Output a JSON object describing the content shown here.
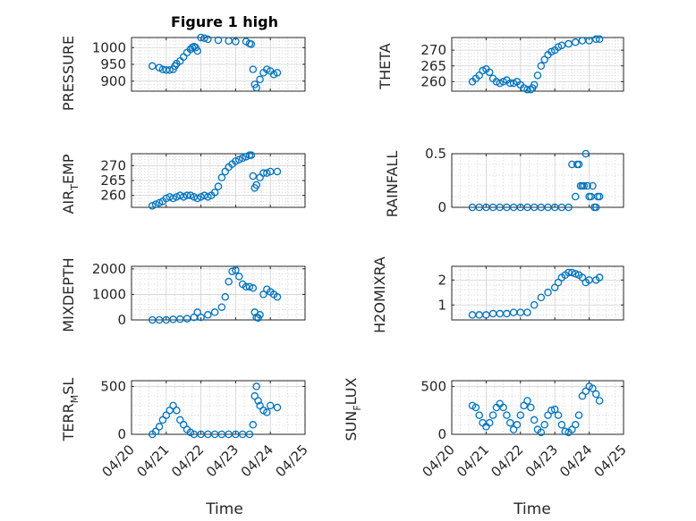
{
  "figure": {
    "title": "Figure 1 high",
    "marker_color": "#0072BD",
    "marker": "circle-open"
  },
  "chart_data": [
    {
      "type": "scatter",
      "title": "Figure 1 high",
      "ylabel": "PRESSURE",
      "xlabel": "",
      "xlim": [
        "04/20",
        "04/25"
      ],
      "xticks": [],
      "ylim": [
        870,
        1030
      ],
      "yticks": [
        900,
        950,
        1000
      ],
      "yticklabels": [
        "900",
        "950",
        "1000"
      ],
      "x_days": [
        0.6,
        0.8,
        0.9,
        1.0,
        1.1,
        1.2,
        1.25,
        1.3,
        1.4,
        1.5,
        1.6,
        1.7,
        1.75,
        1.8,
        1.85,
        1.9,
        2.0,
        2.1,
        2.2,
        2.5,
        2.8,
        3.0,
        3.3,
        3.4,
        3.45,
        3.5,
        3.55,
        3.6,
        3.7,
        3.8,
        3.9,
        4.0,
        4.1,
        4.2
      ],
      "y": [
        945,
        940,
        935,
        933,
        933,
        935,
        945,
        952,
        960,
        972,
        985,
        995,
        1000,
        1003,
        1000,
        990,
        1030,
        1028,
        1025,
        1022,
        1020,
        1018,
        1018,
        1012,
        1010,
        935,
        890,
        880,
        905,
        925,
        935,
        930,
        920,
        925
      ]
    },
    {
      "type": "scatter",
      "ylabel": "THETA",
      "xlabel": "",
      "xlim": [
        "04/20",
        "04/25"
      ],
      "xticks": [],
      "ylim": [
        257,
        274
      ],
      "yticks": [
        260,
        265,
        270
      ],
      "yticklabels": [
        "260",
        "265",
        "270"
      ],
      "x_days": [
        0.6,
        0.7,
        0.8,
        0.9,
        1.0,
        1.1,
        1.2,
        1.3,
        1.4,
        1.5,
        1.6,
        1.7,
        1.8,
        1.9,
        2.0,
        2.1,
        2.2,
        2.3,
        2.35,
        2.4,
        2.5,
        2.6,
        2.7,
        2.8,
        2.9,
        3.0,
        3.1,
        3.2,
        3.4,
        3.6,
        3.8,
        4.0,
        4.2,
        4.3
      ],
      "y": [
        260,
        261,
        262,
        263.5,
        264,
        263,
        261,
        260,
        259.5,
        260,
        260.5,
        259.5,
        259.5,
        260,
        259,
        258,
        257.5,
        257.5,
        258,
        259,
        262,
        265,
        267,
        268.5,
        269.5,
        270,
        271,
        271.5,
        272,
        272.5,
        273,
        273,
        273.5,
        273.5
      ]
    },
    {
      "type": "scatter",
      "ylabel": "AIR_TEMP",
      "ylabel_parts": [
        "AIR",
        "T",
        "EMP"
      ],
      "xlabel": "",
      "xlim": [
        "04/20",
        "04/25"
      ],
      "xticks": [],
      "ylim": [
        256,
        274
      ],
      "yticks": [
        260,
        265,
        270
      ],
      "yticklabels": [
        "260",
        "265",
        "270"
      ],
      "x_days": [
        0.6,
        0.7,
        0.8,
        0.9,
        1.0,
        1.1,
        1.2,
        1.3,
        1.4,
        1.5,
        1.6,
        1.7,
        1.8,
        1.9,
        2.0,
        2.1,
        2.2,
        2.3,
        2.4,
        2.5,
        2.6,
        2.7,
        2.8,
        2.9,
        3.0,
        3.1,
        3.2,
        3.3,
        3.4,
        3.45,
        3.5,
        3.55,
        3.6,
        3.7,
        3.8,
        3.9,
        4.0,
        4.2
      ],
      "y": [
        256.5,
        257,
        257.5,
        258,
        259,
        259.5,
        259,
        259.5,
        260,
        259.5,
        260,
        260,
        259.5,
        259,
        259.5,
        260,
        259.5,
        260,
        261,
        263,
        266,
        268,
        269.5,
        270.5,
        271.5,
        272,
        272.5,
        273,
        273.5,
        273.5,
        266.5,
        262.5,
        263.5,
        266,
        267.5,
        267.5,
        268,
        268
      ]
    },
    {
      "type": "scatter",
      "ylabel": "RAINFALL",
      "xlabel": "",
      "xlim": [
        "04/20",
        "04/25"
      ],
      "xticks": [],
      "ylim": [
        0,
        0.5
      ],
      "yticks": [
        0,
        0.5
      ],
      "yticklabels": [
        "0",
        "0.5"
      ],
      "x_days": [
        0.6,
        0.8,
        1.0,
        1.2,
        1.4,
        1.6,
        1.8,
        2.0,
        2.2,
        2.4,
        2.6,
        2.8,
        3.0,
        3.2,
        3.4,
        3.5,
        3.6,
        3.65,
        3.7,
        3.75,
        3.8,
        3.85,
        3.9,
        3.95,
        4.0,
        4.05,
        4.1,
        4.15,
        4.2,
        4.25,
        4.3
      ],
      "y": [
        0,
        0,
        0,
        0,
        0,
        0,
        0,
        0,
        0,
        0,
        0,
        0,
        0,
        0,
        0,
        0.4,
        0.1,
        0.4,
        0.4,
        0.2,
        0.2,
        0.2,
        0.5,
        0.2,
        0.1,
        0.1,
        0.2,
        0,
        0,
        0.1,
        0.1
      ]
    },
    {
      "type": "scatter",
      "ylabel": "MIXDEPTH",
      "xlabel": "",
      "xlim": [
        "04/20",
        "04/25"
      ],
      "xticks": [],
      "ylim": [
        0,
        2100
      ],
      "yticks": [
        0,
        1000,
        2000
      ],
      "yticklabels": [
        "0",
        "1000",
        "2000"
      ],
      "x_days": [
        0.6,
        0.8,
        1.0,
        1.2,
        1.4,
        1.6,
        1.8,
        1.9,
        2.0,
        2.2,
        2.4,
        2.6,
        2.7,
        2.8,
        2.9,
        3.0,
        3.1,
        3.2,
        3.3,
        3.4,
        3.5,
        3.55,
        3.6,
        3.65,
        3.7,
        3.8,
        3.9,
        4.0,
        4.1,
        4.2
      ],
      "y": [
        0,
        0,
        0,
        20,
        30,
        50,
        100,
        300,
        100,
        200,
        300,
        500,
        900,
        1500,
        1900,
        1950,
        1700,
        1400,
        1300,
        1300,
        1250,
        300,
        100,
        80,
        200,
        1000,
        1200,
        1100,
        1000,
        900
      ]
    },
    {
      "type": "scatter",
      "ylabel": "H2OMIXRA",
      "xlabel": "",
      "xlim": [
        "04/20",
        "04/25"
      ],
      "xticks": [],
      "ylim": [
        0.4,
        2.55
      ],
      "yticks": [
        1,
        2
      ],
      "yticklabels": [
        "1",
        "2"
      ],
      "x_days": [
        0.6,
        0.8,
        1.0,
        1.2,
        1.4,
        1.6,
        1.8,
        2.0,
        2.2,
        2.4,
        2.6,
        2.8,
        3.0,
        3.1,
        3.2,
        3.3,
        3.4,
        3.5,
        3.6,
        3.7,
        3.8,
        3.9,
        4.0,
        4.2,
        4.3
      ],
      "y": [
        0.6,
        0.6,
        0.6,
        0.65,
        0.65,
        0.65,
        0.7,
        0.7,
        0.7,
        1.0,
        1.3,
        1.5,
        1.7,
        1.9,
        2.1,
        2.2,
        2.3,
        2.3,
        2.25,
        2.2,
        2.1,
        1.9,
        2.0,
        2.0,
        2.1
      ]
    },
    {
      "type": "scatter",
      "ylabel": "TERR_MSL",
      "ylabel_parts": [
        "TERR",
        "M",
        "SL"
      ],
      "xlabel": "Time",
      "xlim": [
        "04/20",
        "04/25"
      ],
      "xticks": [
        "04/20",
        "04/21",
        "04/22",
        "04/23",
        "04/24",
        "04/25"
      ],
      "ylim": [
        0,
        560
      ],
      "yticks": [
        0,
        500
      ],
      "yticklabels": [
        "0",
        "500"
      ],
      "x_days": [
        0.6,
        0.7,
        0.8,
        0.9,
        1.0,
        1.1,
        1.2,
        1.3,
        1.4,
        1.5,
        1.6,
        1.7,
        1.8,
        2.0,
        2.2,
        2.4,
        2.6,
        2.8,
        3.0,
        3.2,
        3.4,
        3.5,
        3.55,
        3.6,
        3.65,
        3.7,
        3.8,
        3.9,
        4.0,
        4.2
      ],
      "y": [
        0,
        30,
        80,
        150,
        200,
        250,
        300,
        250,
        150,
        100,
        50,
        20,
        0,
        0,
        0,
        0,
        0,
        0,
        0,
        0,
        0,
        100,
        400,
        500,
        350,
        300,
        250,
        230,
        300,
        280
      ]
    },
    {
      "type": "scatter",
      "ylabel": "SUN_FLUX",
      "ylabel_parts": [
        "SUN",
        "F",
        "LUX"
      ],
      "xlabel": "Time",
      "xlim": [
        "04/20",
        "04/25"
      ],
      "xticks": [
        "04/20",
        "04/21",
        "04/22",
        "04/23",
        "04/24",
        "04/25"
      ],
      "ylim": [
        0,
        560
      ],
      "yticks": [
        0,
        500
      ],
      "yticklabels": [
        "0",
        "500"
      ],
      "x_days": [
        0.6,
        0.7,
        0.8,
        0.9,
        1.0,
        1.1,
        1.2,
        1.3,
        1.4,
        1.5,
        1.6,
        1.7,
        1.8,
        1.9,
        2.0,
        2.1,
        2.2,
        2.3,
        2.4,
        2.5,
        2.6,
        2.7,
        2.8,
        2.9,
        3.0,
        3.1,
        3.2,
        3.3,
        3.4,
        3.5,
        3.6,
        3.7,
        3.8,
        3.9,
        4.0,
        4.1,
        4.2,
        4.3
      ],
      "y": [
        300,
        280,
        200,
        120,
        80,
        120,
        200,
        280,
        320,
        280,
        200,
        120,
        50,
        100,
        200,
        300,
        350,
        280,
        150,
        50,
        20,
        100,
        200,
        250,
        260,
        200,
        100,
        30,
        20,
        50,
        100,
        200,
        400,
        450,
        500,
        480,
        420,
        350
      ]
    }
  ]
}
